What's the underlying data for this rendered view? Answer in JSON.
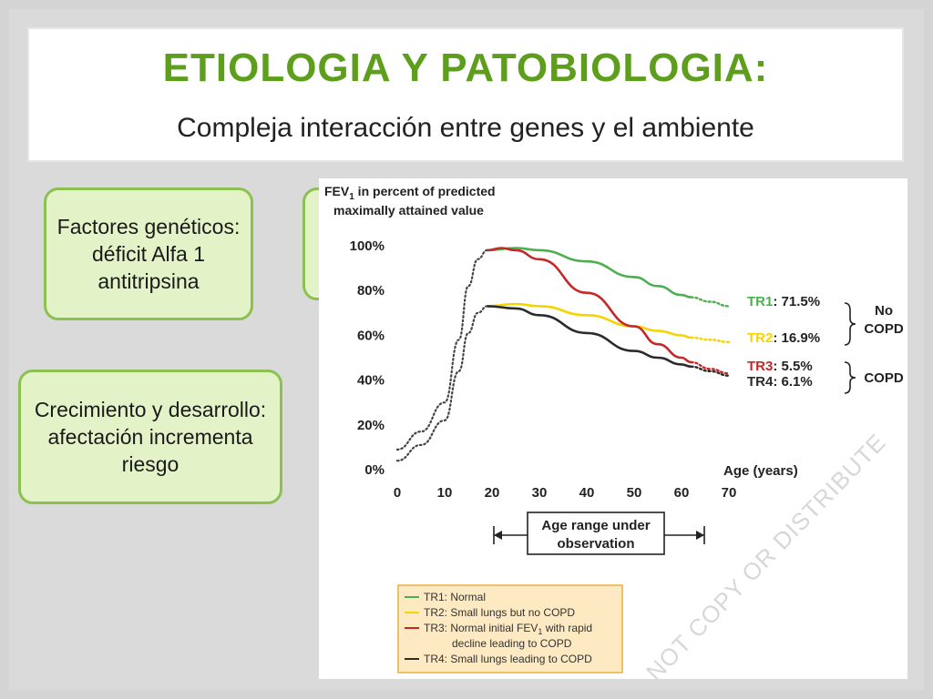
{
  "slide": {
    "title": "ETIOLOGIA Y PATOBIOLOGIA:",
    "subtitle": "Compleja interacción entre genes y el ambiente",
    "notes": [
      "Factores genéticos: déficit Alfa 1 antitripsina",
      "Crecimiento y desarrollo: afectación incrementa riesgo"
    ]
  },
  "colors": {
    "title": "#5e9e1d",
    "tr1": "#4caf50",
    "tr2": "#f5d400",
    "tr3": "#c62828",
    "tr4": "#2b2b2b",
    "note_fill": "#e4f2c8",
    "note_border": "#8cc152",
    "legend_fill": "#fde9c2",
    "legend_border": "#e8b54a"
  },
  "chart_data": {
    "type": "line",
    "ylabel_line1": "FEV",
    "ylabel_sub": "1",
    "ylabel_line1_rest": " in percent of predicted",
    "ylabel_line2": "maximally attained value",
    "xlabel": "Age (years)",
    "xlim": [
      0,
      70
    ],
    "ylim": [
      0,
      100
    ],
    "x_ticks": [
      "0",
      "10",
      "20",
      "30",
      "40",
      "50",
      "60",
      "70"
    ],
    "y_ticks": [
      "0%",
      "20%",
      "40%",
      "60%",
      "80%",
      "100%"
    ],
    "grid": false,
    "age_range_label_line1": "Age range under",
    "age_range_label_line2": "observation",
    "age_range": [
      20,
      65
    ],
    "series": [
      {
        "name": "TR1",
        "value_label": "71.5%",
        "color": "#4caf50",
        "dotted": [
          [
            0,
            9
          ],
          [
            5,
            17
          ],
          [
            10,
            30
          ],
          [
            13,
            58
          ],
          [
            15,
            82
          ],
          [
            17,
            94
          ],
          [
            19,
            98
          ]
        ],
        "solid": [
          [
            19,
            98
          ],
          [
            25,
            99
          ],
          [
            30,
            98
          ],
          [
            40,
            93
          ],
          [
            50,
            86
          ],
          [
            55,
            82
          ],
          [
            60,
            78
          ],
          [
            62,
            77
          ]
        ],
        "tail": [
          [
            62,
            77
          ],
          [
            66,
            75
          ],
          [
            70,
            73
          ]
        ]
      },
      {
        "name": "TR2",
        "value_label": "16.9%",
        "color": "#f5d400",
        "dotted": [
          [
            19,
            72
          ]
        ],
        "solid": [
          [
            19,
            73
          ],
          [
            25,
            74
          ],
          [
            30,
            73
          ],
          [
            40,
            69
          ],
          [
            50,
            64
          ],
          [
            55,
            62
          ],
          [
            60,
            60
          ],
          [
            62,
            59
          ]
        ],
        "tail": [
          [
            62,
            59
          ],
          [
            66,
            58
          ],
          [
            70,
            57
          ]
        ]
      },
      {
        "name": "TR3",
        "value_label": "5.5%",
        "color": "#c62828",
        "dotted": [],
        "solid": [
          [
            19,
            98
          ],
          [
            22,
            99
          ],
          [
            25,
            98
          ],
          [
            30,
            94
          ],
          [
            40,
            79
          ],
          [
            50,
            64
          ],
          [
            55,
            56
          ],
          [
            60,
            50
          ],
          [
            62,
            48
          ]
        ],
        "tail": [
          [
            62,
            48
          ],
          [
            66,
            45
          ],
          [
            70,
            43
          ]
        ]
      },
      {
        "name": "TR4",
        "value_label": "6.1%",
        "color": "#2b2b2b",
        "dotted": [
          [
            0,
            4
          ],
          [
            5,
            11
          ],
          [
            10,
            22
          ],
          [
            13,
            44
          ],
          [
            15,
            61
          ],
          [
            17,
            70
          ],
          [
            19,
            73
          ]
        ],
        "solid": [
          [
            19,
            73
          ],
          [
            25,
            72
          ],
          [
            30,
            69
          ],
          [
            40,
            61
          ],
          [
            50,
            53
          ],
          [
            55,
            50
          ],
          [
            60,
            47
          ],
          [
            62,
            46
          ]
        ],
        "tail": [
          [
            62,
            46
          ],
          [
            66,
            44
          ],
          [
            70,
            42
          ]
        ]
      }
    ],
    "group_labels": [
      {
        "text_line1": "No",
        "text_line2": "COPD"
      },
      {
        "text_line1": "COPD",
        "text_line2": ""
      }
    ],
    "legend": [
      {
        "label": "TR1: Normal",
        "color": "#4caf50"
      },
      {
        "label": "TR2: Small lungs but no COPD",
        "color": "#f5d400"
      },
      {
        "label_line1": "TR3: Normal initial FEV",
        "label_sub": "1",
        "label_line1_rest": " with rapid",
        "label_line2": "decline leading to COPD",
        "color": "#c62828"
      },
      {
        "label": "TR4: Small lungs leading to COPD",
        "color": "#2b2b2b"
      }
    ],
    "watermark": "DO NOT COPY OR DISTRIBUTE"
  }
}
